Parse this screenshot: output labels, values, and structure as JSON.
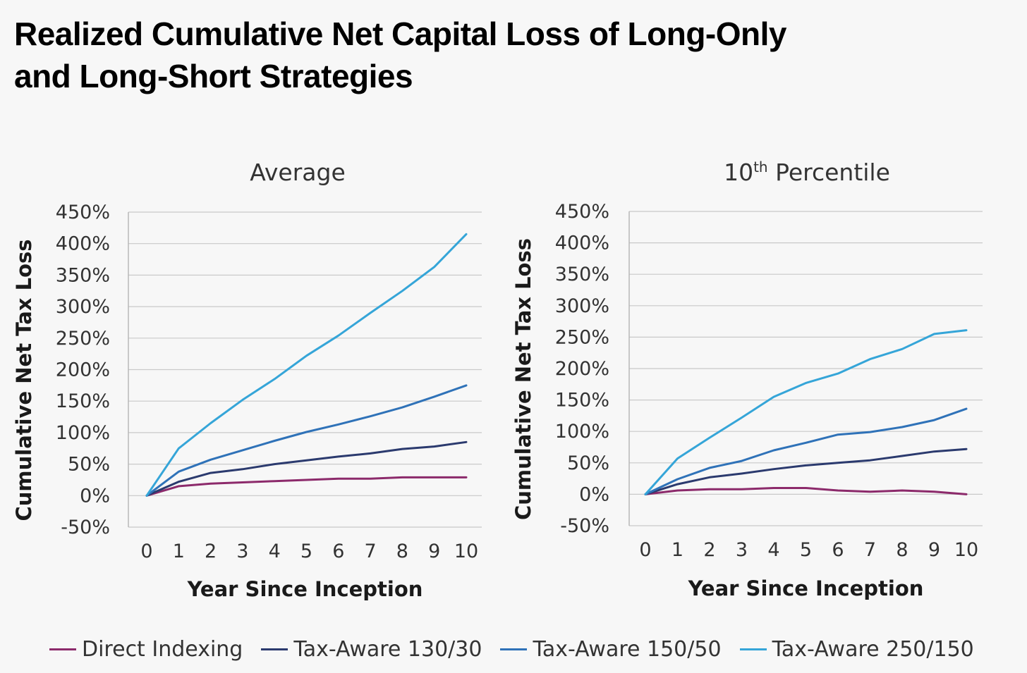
{
  "title": {
    "line1": "Realized Cumulative Net Capital Loss of Long-Only",
    "line2": "and Long-Short Strategies"
  },
  "series_meta": [
    {
      "name": "Direct Indexing",
      "color": "#8c2a6b"
    },
    {
      "name": "Tax-Aware 130/30",
      "color": "#2b3a6e"
    },
    {
      "name": "Tax-Aware 150/50",
      "color": "#2f72b8"
    },
    {
      "name": "Tax-Aware 250/150",
      "color": "#35a5d8"
    }
  ],
  "chart_data": [
    {
      "type": "line",
      "title": "Average",
      "xlabel": "Year Since Inception",
      "ylabel": "Cumulative Net Tax Loss",
      "x": [
        0,
        1,
        2,
        3,
        4,
        5,
        6,
        7,
        8,
        9,
        10
      ],
      "x_ticks": [
        "0",
        "1",
        "2",
        "3",
        "4",
        "5",
        "6",
        "7",
        "8",
        "9",
        "10"
      ],
      "ylim": [
        -50,
        450
      ],
      "y_ticks": [
        "-50%",
        "0%",
        "50%",
        "100%",
        "150%",
        "200%",
        "250%",
        "300%",
        "350%",
        "400%",
        "450%"
      ],
      "grid": true,
      "series": [
        {
          "name": "Direct Indexing",
          "values": [
            0,
            15,
            19,
            21,
            23,
            25,
            27,
            27,
            29,
            29,
            29
          ]
        },
        {
          "name": "Tax-Aware 130/30",
          "values": [
            0,
            22,
            36,
            42,
            50,
            56,
            62,
            67,
            74,
            78,
            85
          ]
        },
        {
          "name": "Tax-Aware 150/50",
          "values": [
            0,
            38,
            57,
            72,
            87,
            101,
            113,
            126,
            140,
            157,
            175
          ]
        },
        {
          "name": "Tax-Aware 250/150",
          "values": [
            0,
            75,
            115,
            152,
            185,
            222,
            254,
            290,
            325,
            363,
            415
          ]
        }
      ]
    },
    {
      "type": "line",
      "title": "10th Percentile",
      "xlabel": "Year Since Inception",
      "ylabel": "Cumulative Net Tax Loss",
      "x": [
        0,
        1,
        2,
        3,
        4,
        5,
        6,
        7,
        8,
        9,
        10
      ],
      "x_ticks": [
        "0",
        "1",
        "2",
        "3",
        "4",
        "5",
        "6",
        "7",
        "8",
        "9",
        "10"
      ],
      "ylim": [
        -50,
        450
      ],
      "y_ticks": [
        "-50%",
        "0%",
        "50%",
        "100%",
        "150%",
        "200%",
        "250%",
        "300%",
        "350%",
        "400%",
        "450%"
      ],
      "grid": true,
      "series": [
        {
          "name": "Direct Indexing",
          "values": [
            0,
            6,
            8,
            8,
            10,
            10,
            6,
            4,
            6,
            4,
            0
          ]
        },
        {
          "name": "Tax-Aware 130/30",
          "values": [
            0,
            16,
            27,
            33,
            40,
            46,
            50,
            54,
            61,
            68,
            72
          ]
        },
        {
          "name": "Tax-Aware 150/50",
          "values": [
            0,
            24,
            42,
            53,
            70,
            82,
            95,
            99,
            107,
            118,
            136
          ]
        },
        {
          "name": "Tax-Aware 250/150",
          "values": [
            0,
            57,
            90,
            122,
            155,
            177,
            192,
            215,
            231,
            255,
            261
          ]
        }
      ]
    }
  ]
}
